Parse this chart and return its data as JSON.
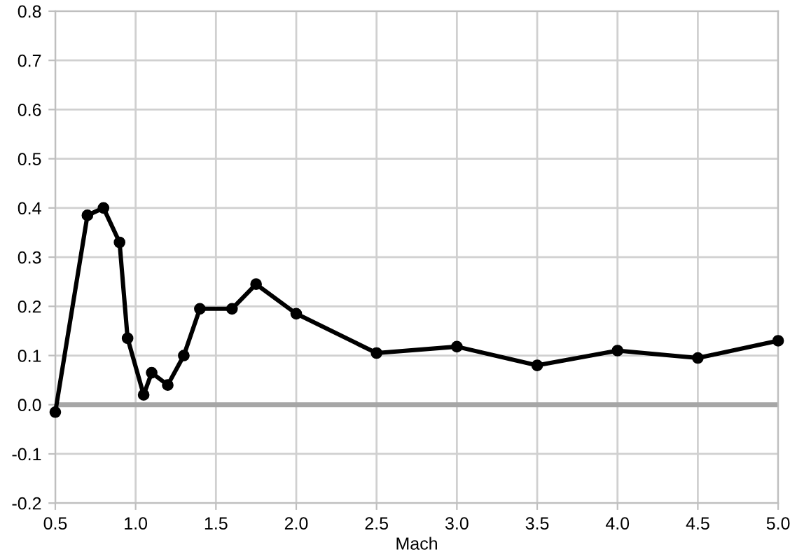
{
  "chart_data": {
    "type": "line",
    "xlabel": "Mach",
    "x": [
      0.5,
      0.7,
      0.8,
      0.9,
      0.95,
      1.05,
      1.1,
      1.2,
      1.3,
      1.4,
      1.6,
      1.75,
      2.0,
      2.5,
      3.0,
      3.5,
      4.0,
      4.5,
      5.0
    ],
    "series": [
      {
        "color": "#000000",
        "values": [
          -0.015,
          0.385,
          0.4,
          0.33,
          0.135,
          0.02,
          0.065,
          0.04,
          0.1,
          0.195,
          0.195,
          0.245,
          0.185,
          0.105,
          0.118,
          0.08,
          0.11,
          0.095,
          0.13
        ]
      }
    ],
    "xlim": [
      0.5,
      5.0
    ],
    "xticks": [
      {
        "value": 0.5,
        "label": "0.5"
      },
      {
        "value": 1.0,
        "label": "1.0"
      },
      {
        "value": 1.5,
        "label": "1.5"
      },
      {
        "value": 2.0,
        "label": "2.0"
      },
      {
        "value": 2.5,
        "label": "2.5"
      },
      {
        "value": 3.0,
        "label": "3.0"
      },
      {
        "value": 3.5,
        "label": "3.5"
      },
      {
        "value": 4.0,
        "label": "4.0"
      },
      {
        "value": 4.5,
        "label": "4.5"
      },
      {
        "value": 5.0,
        "label": "5.0"
      }
    ],
    "ylim": [
      -0.2,
      0.8
    ],
    "yticks": [
      {
        "value": -0.2,
        "label": "-0.2"
      },
      {
        "value": -0.1,
        "label": "-0.1"
      },
      {
        "value": 0.0,
        "label": "0.0"
      },
      {
        "value": 0.1,
        "label": "0.1"
      },
      {
        "value": 0.2,
        "label": "0.2"
      },
      {
        "value": 0.3,
        "label": "0.3"
      },
      {
        "value": 0.4,
        "label": "0.4"
      },
      {
        "value": 0.5,
        "label": "0.5"
      },
      {
        "value": 0.6,
        "label": "0.6"
      },
      {
        "value": 0.7,
        "label": "0.7"
      },
      {
        "value": 0.8,
        "label": "0.8"
      }
    ],
    "ref_lines": [
      {
        "axis": "y",
        "value": 0.0,
        "color": "#a6a6a6"
      }
    ],
    "grid": true,
    "marker": "circle",
    "line_style": "solid"
  }
}
